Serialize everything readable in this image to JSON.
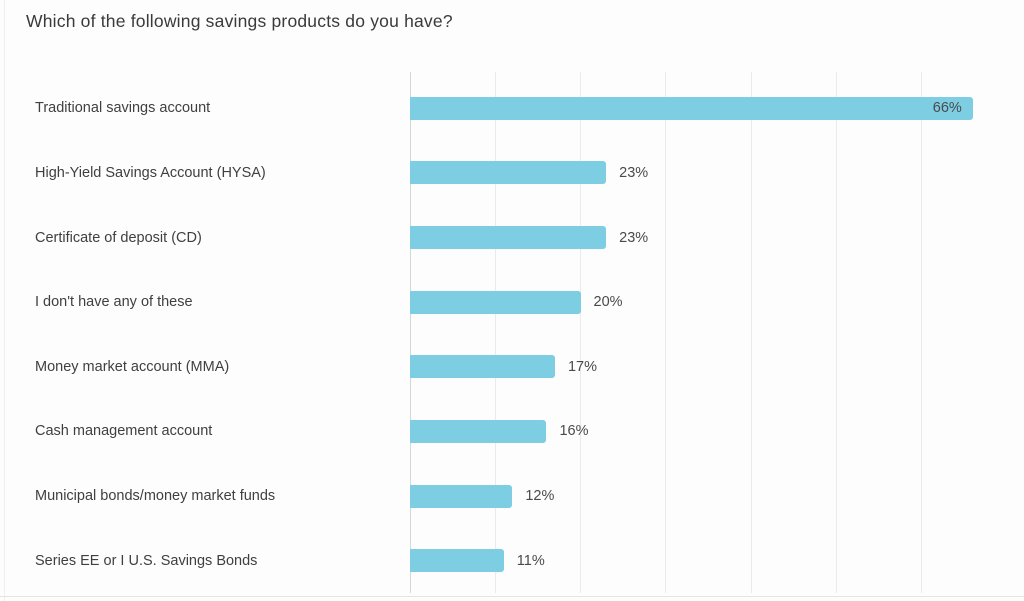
{
  "title": "Which of the following savings products do you have?",
  "chart_data": {
    "type": "bar",
    "orientation": "horizontal",
    "title": "Which of the following savings products do you have?",
    "categories": [
      "Traditional savings account",
      "High-Yield Savings Account (HYSA)",
      "Certificate of deposit (CD)",
      "I don't have any of these",
      "Money market account (MMA)",
      "Cash management account",
      "Municipal bonds/money market funds",
      "Series EE or I U.S. Savings Bonds"
    ],
    "values": [
      66,
      23,
      23,
      20,
      17,
      16,
      12,
      11
    ],
    "value_labels": [
      "66%",
      "23%",
      "23%",
      "20%",
      "17%",
      "16%",
      "12%",
      "11%"
    ],
    "xlabel": "",
    "ylabel": "",
    "xlim": [
      0,
      72
    ],
    "grid_ticks": [
      0,
      10,
      20,
      30,
      40,
      50,
      60
    ],
    "grid": true,
    "legend": false,
    "tick_labels_shown": false,
    "bar_color": "#7dcde3",
    "gridline_color": "#eaeaea",
    "axis_color": "#d6d6d6",
    "title_color": "#3a3a3a",
    "label_color": "#3f3f3f",
    "value_color": "#4a4a4a",
    "value_inside_threshold": 60
  }
}
